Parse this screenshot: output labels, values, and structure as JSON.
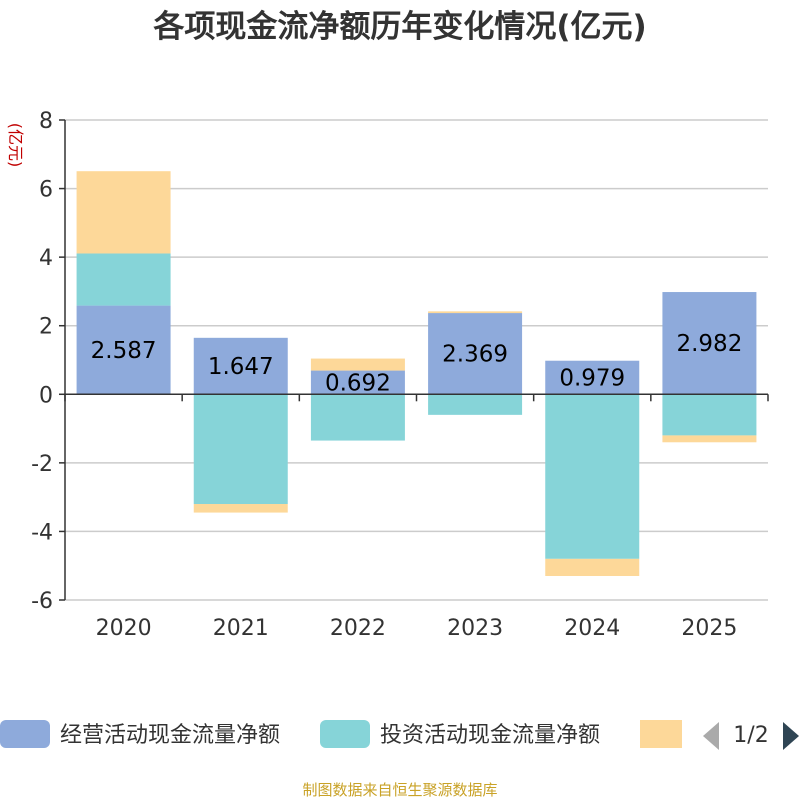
{
  "chart_data": {
    "type": "bar",
    "stacked": true,
    "title": "各项现金流净额历年变化情况(亿元)",
    "ylabel": "(亿元)",
    "xlabel": "",
    "ylim": [
      -6,
      8
    ],
    "yticks": [
      8,
      6,
      4,
      2,
      0,
      -2,
      -4,
      -6
    ],
    "categories": [
      "2020",
      "2021",
      "2022",
      "2023",
      "2024",
      "2025"
    ],
    "series": [
      {
        "name": "经营活动现金流量净额",
        "color": "#8eaadb",
        "values": [
          2.587,
          1.647,
          0.692,
          2.369,
          0.979,
          2.982
        ],
        "labels": [
          "2.587",
          "1.647",
          "0.692",
          "2.369",
          "0.979",
          "2.982"
        ]
      },
      {
        "name": "投资活动现金流量净额",
        "color": "#86d4d8",
        "values": [
          1.52,
          -3.2,
          -1.35,
          -0.6,
          -4.8,
          -1.2
        ]
      },
      {
        "name": "",
        "color": "#fdd899",
        "values": [
          2.4,
          -0.25,
          0.35,
          0.05,
          -0.5,
          -0.2
        ]
      }
    ],
    "grid": true
  },
  "legend": {
    "items": [
      "经营活动现金流量净额",
      "投资活动现金流量净额"
    ],
    "page": "1/2"
  },
  "source": "制图数据来自恒生聚源数据库"
}
